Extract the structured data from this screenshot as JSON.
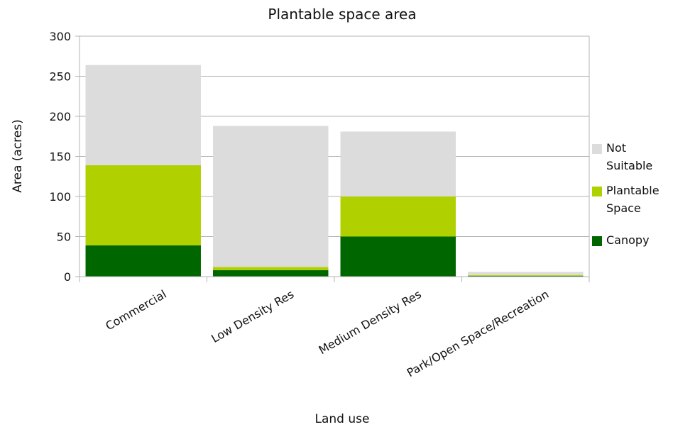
{
  "chart_data": {
    "type": "bar",
    "stacked": true,
    "title": "Plantable space area",
    "xlabel": "Land use",
    "ylabel": "Area (acres)",
    "ylim": [
      0,
      300
    ],
    "yticks": [
      0,
      50,
      100,
      150,
      200,
      250,
      300
    ],
    "grid": true,
    "legend_position": "right",
    "categories": [
      "Commercial",
      "Low Density Res",
      "Medium Density Res",
      "Park/Open Space/Recreation"
    ],
    "series": [
      {
        "name": "Canopy",
        "color": "#006600",
        "values": [
          39,
          8,
          50,
          1
        ]
      },
      {
        "name": "Plantable Space",
        "color": "#b0d000",
        "values": [
          100,
          4,
          50,
          1
        ]
      },
      {
        "name": "Not Suitable",
        "color": "#dcdcdc",
        "values": [
          125,
          176,
          81,
          4
        ]
      }
    ],
    "legend": [
      {
        "lines": [
          "Not",
          "Suitable"
        ],
        "color": "#dcdcdc"
      },
      {
        "lines": [
          "Plantable",
          "Space"
        ],
        "color": "#b0d000"
      },
      {
        "lines": [
          "Canopy"
        ],
        "color": "#006600"
      }
    ]
  }
}
